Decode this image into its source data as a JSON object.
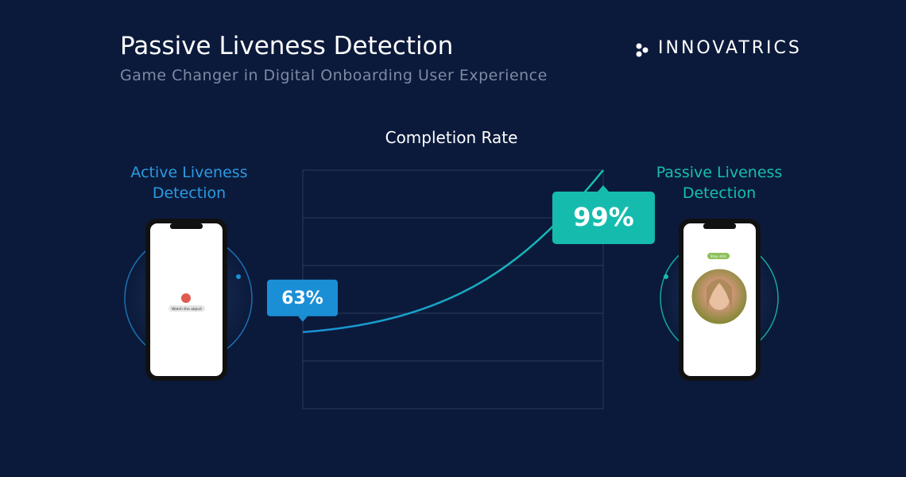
{
  "brand": "INNOVATRICS",
  "chart_data": {
    "type": "line",
    "title": "Passive Liveness Detection",
    "subtitle": "Game Changer in Digital Onboarding User Experience",
    "chart_title": "Completion Rate",
    "categories": [
      "Active Liveness Detection",
      "Passive Liveness Detection"
    ],
    "values": [
      63,
      99
    ],
    "value_labels": [
      "63%",
      "99%"
    ],
    "label_colors": [
      "#1b8fd6",
      "#15bcae"
    ],
    "ylim": [
      46,
      99
    ]
  },
  "phones": {
    "left_prompt": "Watch the object",
    "right_prompt": "Stay still."
  }
}
